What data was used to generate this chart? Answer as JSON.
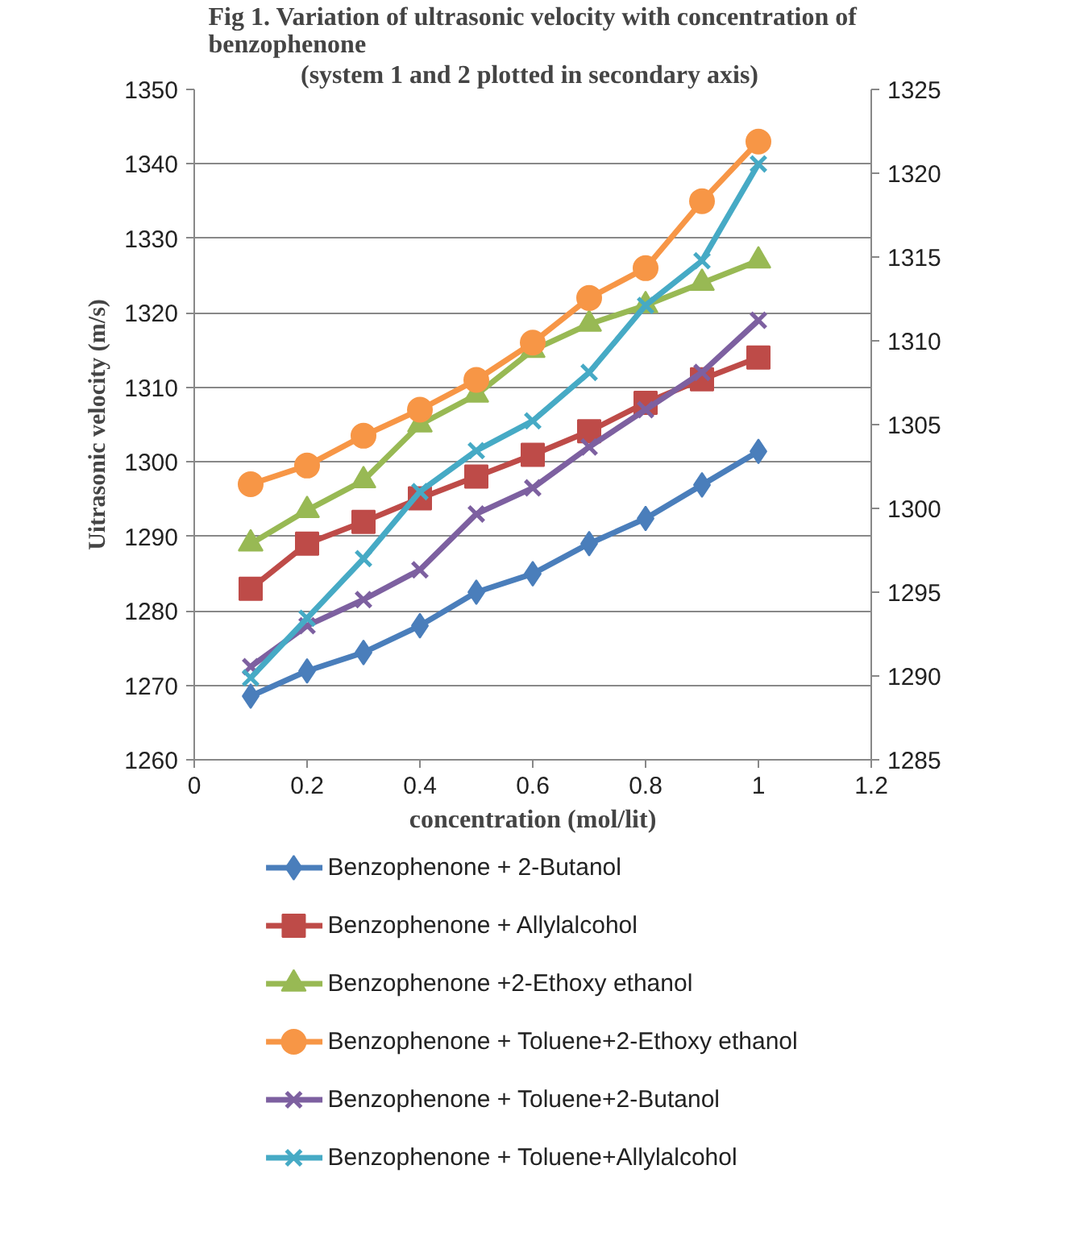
{
  "chart_data": {
    "type": "line",
    "title": "Fig 1. Variation of ultrasonic velocity with concentration of benzophenone",
    "subtitle": "(system 1 and 2  plotted in secondary axis)",
    "xlabel": "concentration (mol/lit)",
    "ylabel": "Uitrasonic velocity (m/s)",
    "x": [
      0.1,
      0.2,
      0.3,
      0.4,
      0.5,
      0.6,
      0.7,
      0.8,
      0.9,
      1.0
    ],
    "xlim": [
      0,
      1.2
    ],
    "xticks": [
      0,
      0.2,
      0.4,
      0.6,
      0.8,
      1,
      1.2
    ],
    "ylim": [
      1260,
      1350
    ],
    "yticks": [
      1260,
      1270,
      1280,
      1290,
      1300,
      1310,
      1320,
      1330,
      1340,
      1350
    ],
    "y2lim": [
      1285,
      1325
    ],
    "y2ticks": [
      1285,
      1290,
      1295,
      1300,
      1305,
      1310,
      1315,
      1320,
      1325
    ],
    "grid": "y",
    "legend": "bottom",
    "series": [
      {
        "name": "Benzophenone + 2-Butanol",
        "color": "#4a7ebb",
        "marker": "diamond",
        "axis": "y2",
        "values": [
          1288.8,
          1290.3,
          1291.4,
          1293.0,
          1295.0,
          1296.1,
          1297.9,
          1299.4,
          1301.4,
          1303.4
        ]
      },
      {
        "name": "Benzophenone + Allylalcohol",
        "color": "#be4b48",
        "marker": "square",
        "axis": "y2",
        "values": [
          1295.2,
          1297.9,
          1299.2,
          1300.6,
          1301.9,
          1303.2,
          1304.6,
          1306.3,
          1307.7,
          1309.0
        ]
      },
      {
        "name": "Benzophenone +2-Ethoxy ethanol",
        "color": "#98b954",
        "marker": "triangle",
        "values": [
          1289,
          1293.5,
          1297.5,
          1305,
          1309,
          1315,
          1318.5,
          1321,
          1324,
          1327
        ]
      },
      {
        "name": " Benzophenone + Toluene+2-Ethoxy ethanol",
        "color": "#f79646",
        "marker": "circle",
        "values": [
          1297,
          1299.5,
          1303.5,
          1307,
          1311,
          1316,
          1322,
          1326,
          1335,
          1343
        ]
      },
      {
        "name": "Benzophenone + Toluene+2-Butanol",
        "color": "#7d60a0",
        "marker": "cross",
        "values": [
          1272.5,
          1278,
          1281.5,
          1285.5,
          1293,
          1296.5,
          1302,
          1307,
          1312,
          1319
        ]
      },
      {
        "name": "Benzophenone + Toluene+Allylalcohol",
        "color": "#46aac5",
        "marker": "cross",
        "values": [
          1271,
          1279,
          1287,
          1296,
          1301.5,
          1305.5,
          1312,
          1321,
          1327,
          1340
        ]
      }
    ]
  }
}
